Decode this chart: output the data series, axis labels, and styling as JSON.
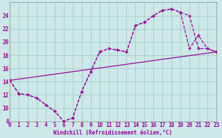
{
  "bg_color": "#cce8e8",
  "grid_color": "#aacccc",
  "line_color": "#990099",
  "xlim": [
    0,
    23
  ],
  "ylim": [
    8,
    26
  ],
  "yticks": [
    8,
    10,
    12,
    14,
    16,
    18,
    20,
    22,
    24
  ],
  "xticks": [
    0,
    1,
    2,
    3,
    4,
    5,
    6,
    7,
    8,
    9,
    10,
    11,
    12,
    13,
    14,
    15,
    16,
    17,
    18,
    19,
    20,
    21,
    22,
    23
  ],
  "xlabel": "Windchill (Refroidissement éolien,°C)",
  "line1_x": [
    0,
    1,
    2,
    3,
    4,
    5,
    6,
    7,
    8,
    9,
    10,
    11,
    12,
    13,
    14,
    15,
    16,
    17,
    18,
    19,
    20,
    21,
    22,
    23
  ],
  "line1_y": [
    14.2,
    12.2,
    12.0,
    11.5,
    10.5,
    9.5,
    8.0,
    8.5,
    12.5,
    15.5,
    18.5,
    19.0,
    18.8,
    18.5,
    22.5,
    23.0,
    24.0,
    24.8,
    25.0,
    24.5,
    19.0,
    21.0,
    19.0,
    18.5
  ],
  "line2_x": [
    0,
    1,
    2,
    3,
    4,
    5,
    6,
    7,
    8,
    9,
    10,
    11,
    12,
    13,
    14,
    15,
    16,
    17,
    18,
    19,
    20,
    21,
    22,
    23
  ],
  "line2_y": [
    14.2,
    12.2,
    12.0,
    11.5,
    10.5,
    9.5,
    8.0,
    8.5,
    12.5,
    15.5,
    18.5,
    19.0,
    18.8,
    18.5,
    22.5,
    23.0,
    24.0,
    24.8,
    25.0,
    24.5,
    24.0,
    19.0,
    19.0,
    18.5
  ],
  "line3_x": [
    0,
    23
  ],
  "line3_y": [
    14.2,
    18.5
  ],
  "figsize": [
    3.2,
    2.0
  ],
  "dpi": 100
}
